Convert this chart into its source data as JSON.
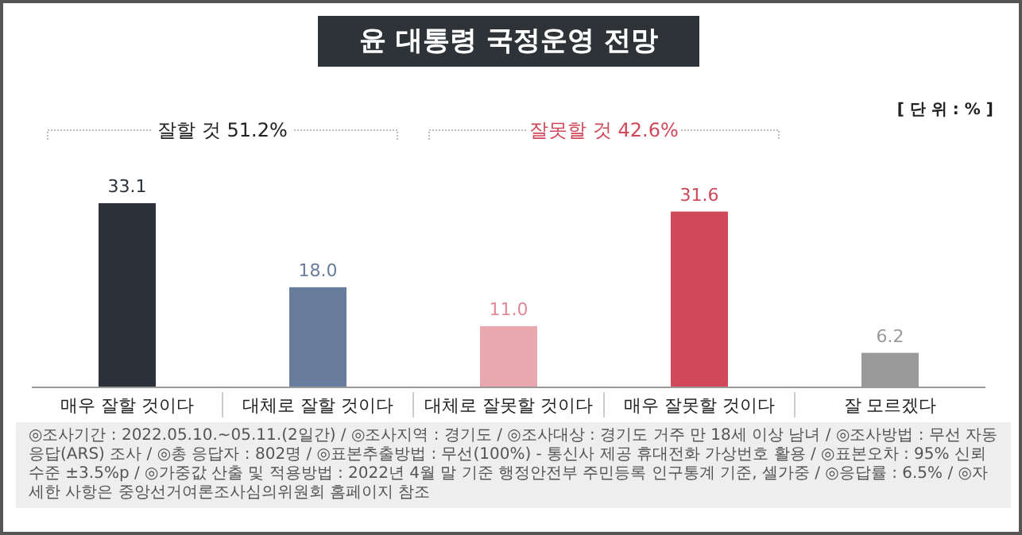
{
  "chart_data": {
    "type": "bar",
    "title": "윤 대통령 국정운영 전망",
    "categories": [
      "매우 잘할 것이다",
      "대체로 잘할 것이다",
      "대체로 잘못할 것이다",
      "매우 잘못할 것이다",
      "잘 모르겠다"
    ],
    "values": [
      33.1,
      18.0,
      11.0,
      31.6,
      6.2
    ],
    "colors": [
      "#2b323b",
      "#687d9c",
      "#e9a7b0",
      "#d0485a",
      "#9a9a9a"
    ],
    "value_labels": [
      "33.1",
      "18.0",
      "11.0",
      "31.6",
      "6.2"
    ],
    "annotations": [
      "잘할 것 51.2%",
      "잘못할 것 42.6%",
      "[ 단 위 : % ]",
      "◎조사기간 : 2022.05.10.~05.11.(2일간) / ◎조사지역 : 경기도 / ◎조사대상 : 경기도 거주 만 18세 이상 남녀 / ◎조사방법 : 무선 자동응답(ARS) 조사 / ◎총 응답자 : 802명 / ◎표본추출방법 : 무선(100%) - 통신사 제공 휴대전화 가상번호 활용 / ◎표본오차 : 95% 신뢰수준 ±3.5%p / ◎가중값 산출 및 적용방법 : 2022년 4월 말 기준 행정안전부 주민등록 인구통계 기준, 셀가중 / ◎응답률 : 6.5% / ◎자세한 사항은 중앙선거여론조사심의위원회 홈페이지 참조"
    ]
  }
}
